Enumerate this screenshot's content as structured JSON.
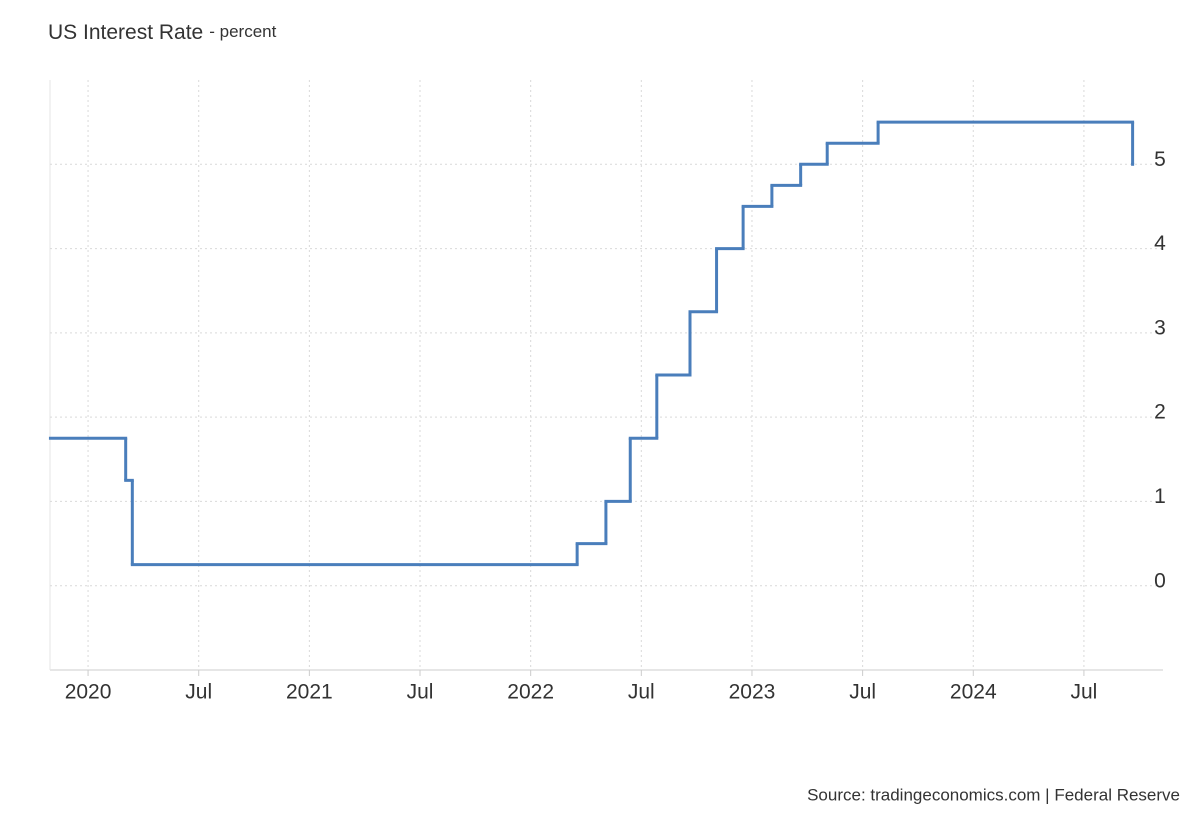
{
  "chart_data": {
    "type": "step-line",
    "title": "US Interest Rate",
    "subtitle": "- percent",
    "source": "Source: tradingeconomics.com | Federal Reserve",
    "x": [
      2019.83,
      2020.17,
      2020.2,
      2022.21,
      2022.34,
      2022.45,
      2022.57,
      2022.72,
      2022.84,
      2022.96,
      2023.09,
      2023.22,
      2023.34,
      2023.57,
      2024.72
    ],
    "series": [
      {
        "name": "US Interest Rate",
        "color": "#4a7ebb",
        "values": [
          1.75,
          1.25,
          0.25,
          0.5,
          1.0,
          1.75,
          2.5,
          3.25,
          4.0,
          4.5,
          4.75,
          5.0,
          5.25,
          5.5,
          5.0
        ]
      }
    ],
    "xlim": [
      2019.828,
      2024.776
    ],
    "xticks": [
      2020,
      {
        "value": 2020.5,
        "label": "Jul"
      },
      2021,
      {
        "value": 2021.5,
        "label": "Jul"
      },
      2022,
      {
        "value": 2022.5,
        "label": "Jul"
      },
      2023,
      {
        "value": 2023.5,
        "label": "Jul"
      },
      2024,
      {
        "value": 2024.5,
        "label": "Jul"
      }
    ],
    "ylim": [
      -1,
      6
    ],
    "yticks": [
      0,
      1,
      2,
      3,
      4,
      5
    ],
    "grid": true
  }
}
